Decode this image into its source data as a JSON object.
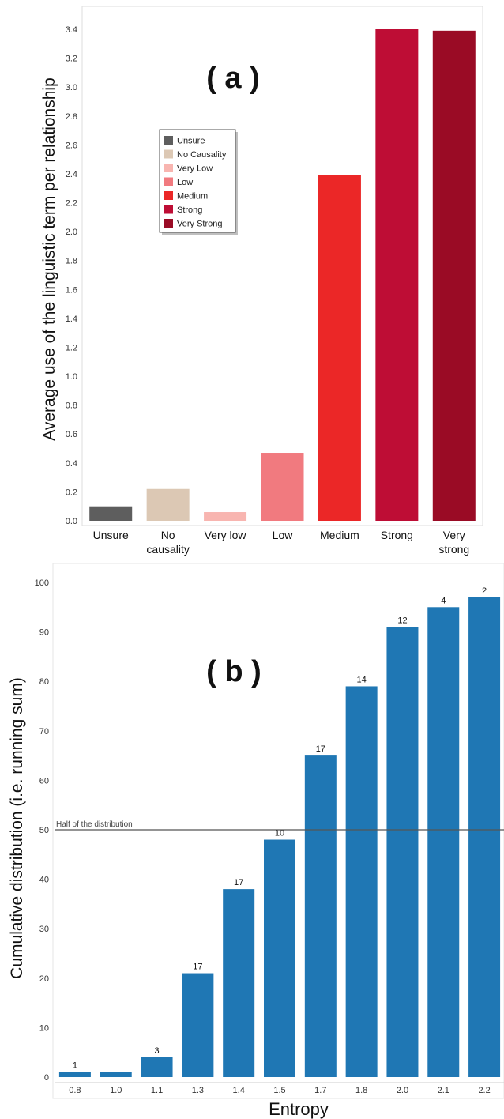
{
  "chart_data": [
    {
      "type": "bar",
      "panel_label": "( a )",
      "ylabel": "Average use of the linguistic term per relationship",
      "xlabel": "",
      "ylim": [
        0,
        3.5
      ],
      "yticks": [
        "0.0",
        "0.2",
        "0.4",
        "0.6",
        "0.8",
        "1.0",
        "1.2",
        "1.4",
        "1.6",
        "1.8",
        "2.0",
        "2.2",
        "2.4",
        "2.6",
        "2.8",
        "3.0",
        "3.2",
        "3.4"
      ],
      "categories": [
        [
          "Unsure"
        ],
        [
          "No",
          "causality"
        ],
        [
          "Very low"
        ],
        [
          "Low"
        ],
        [
          "Medium"
        ],
        [
          "Strong"
        ],
        [
          "Very",
          "strong"
        ]
      ],
      "values": [
        0.1,
        0.22,
        0.06,
        0.47,
        2.39,
        3.4,
        3.39
      ],
      "colors": [
        "#5e5e5e",
        "#dcc8b4",
        "#f8b5b0",
        "#f17a7f",
        "#eb2727",
        "#be0d35",
        "#9a0b25"
      ],
      "legend": {
        "placement": "upper-left",
        "entries": [
          "Unsure",
          "No Causality",
          "Very Low",
          "Low",
          "Medium",
          "Strong",
          "Very Strong"
        ]
      },
      "grid": false
    },
    {
      "type": "bar",
      "panel_label": "( b )",
      "ylabel": "Cumulative distribution (i.e. running sum)",
      "xlabel": "Entropy",
      "ylim": [
        0,
        103
      ],
      "yticks": [
        "0",
        "10",
        "20",
        "30",
        "40",
        "50",
        "60",
        "70",
        "80",
        "90",
        "100"
      ],
      "categories": [
        "0.8",
        "1.0",
        "1.1",
        "1.3",
        "1.4",
        "1.5",
        "1.7",
        "1.8",
        "2.0",
        "2.1",
        "2.2"
      ],
      "values": [
        1,
        1,
        4,
        21,
        38,
        48,
        65,
        79,
        91,
        95,
        97
      ],
      "data_labels": [
        "1",
        "",
        "3",
        "17",
        "17",
        "10",
        "17",
        "14",
        "12",
        "4",
        "2"
      ],
      "color": "#1f77b4",
      "reference_line": {
        "value": 50,
        "label": "Half of the distribution"
      },
      "grid": false
    }
  ]
}
